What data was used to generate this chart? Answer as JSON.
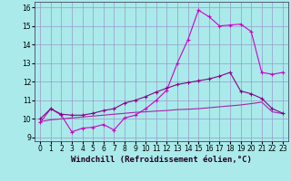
{
  "xlabel": "Windchill (Refroidissement éolien,°C)",
  "xlim": [
    -0.5,
    23.5
  ],
  "ylim": [
    8.8,
    16.3
  ],
  "xticks": [
    0,
    1,
    2,
    3,
    4,
    5,
    6,
    7,
    8,
    9,
    10,
    11,
    12,
    13,
    14,
    15,
    16,
    17,
    18,
    19,
    20,
    21,
    22,
    23
  ],
  "yticks": [
    9,
    10,
    11,
    12,
    13,
    14,
    15,
    16
  ],
  "bg_color": "#aaeaea",
  "grid_color": "#9999cc",
  "line1_color": "#cc00cc",
  "line2_color": "#880088",
  "line3_color": "#aa22aa",
  "line1_x": [
    0,
    1,
    2,
    3,
    4,
    5,
    6,
    7,
    8,
    9,
    10,
    11,
    12,
    13,
    14,
    15,
    16,
    17,
    18,
    19,
    20,
    21,
    22,
    23
  ],
  "line1_y": [
    9.8,
    10.55,
    10.2,
    9.3,
    9.5,
    9.55,
    9.7,
    9.4,
    10.05,
    10.2,
    10.55,
    11.0,
    11.55,
    13.0,
    14.25,
    15.85,
    15.5,
    15.0,
    15.05,
    15.1,
    14.7,
    12.5,
    12.4,
    12.5
  ],
  "line2_x": [
    0,
    1,
    2,
    3,
    4,
    5,
    6,
    7,
    8,
    9,
    10,
    11,
    12,
    13,
    14,
    15,
    16,
    17,
    18,
    19,
    20,
    21,
    22,
    23
  ],
  "line2_y": [
    10.0,
    10.55,
    10.25,
    10.2,
    10.2,
    10.3,
    10.45,
    10.55,
    10.85,
    11.0,
    11.2,
    11.45,
    11.65,
    11.85,
    11.95,
    12.05,
    12.15,
    12.3,
    12.5,
    11.5,
    11.35,
    11.1,
    10.55,
    10.3
  ],
  "line3_x": [
    0,
    1,
    2,
    3,
    4,
    5,
    6,
    7,
    8,
    9,
    10,
    11,
    12,
    13,
    14,
    15,
    16,
    17,
    18,
    19,
    20,
    21,
    22,
    23
  ],
  "line3_y": [
    9.85,
    9.95,
    10.0,
    10.05,
    10.1,
    10.15,
    10.2,
    10.25,
    10.3,
    10.35,
    10.38,
    10.42,
    10.45,
    10.5,
    10.52,
    10.55,
    10.6,
    10.65,
    10.7,
    10.75,
    10.82,
    10.9,
    10.38,
    10.28
  ],
  "tick_fontsize": 5.5,
  "xlabel_fontsize": 6.5
}
